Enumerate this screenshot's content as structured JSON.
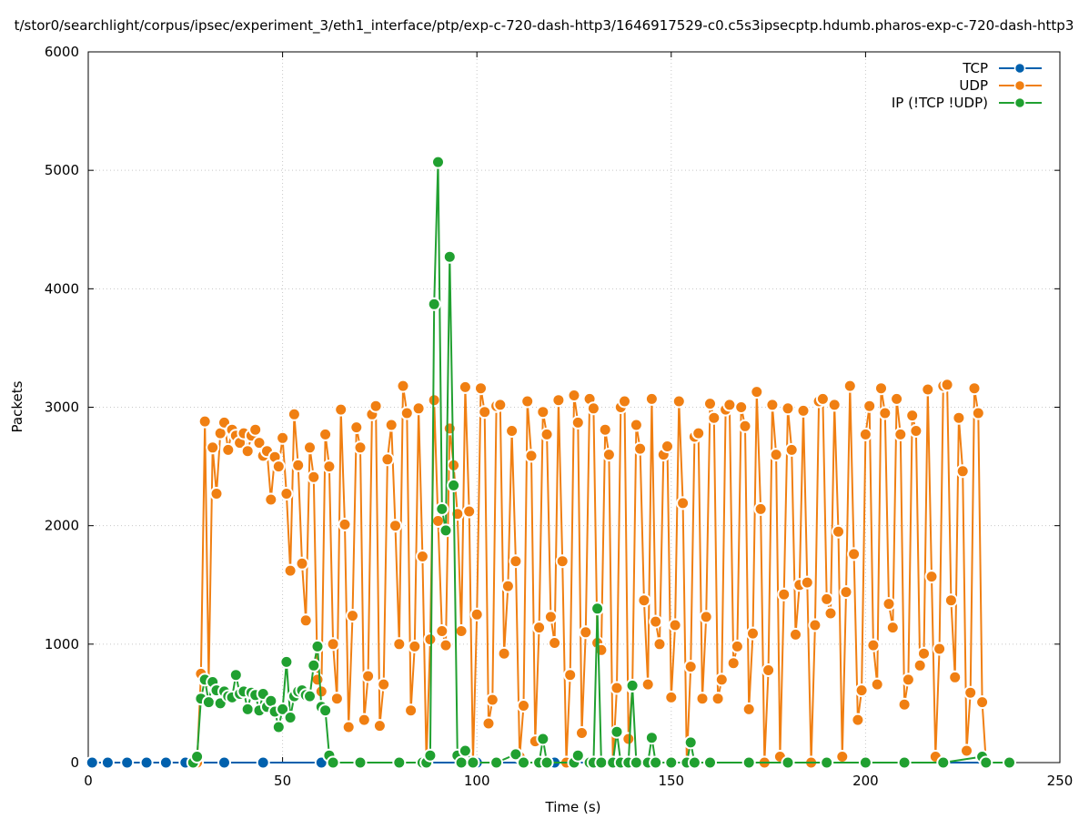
{
  "chart_data": {
    "type": "line",
    "title": "t/stor0/searchlight/corpus/ipsec/experiment_3/eth1_interface/ptp/exp-c-720-dash-http3/1646917529-c0.c5s3ipsecptp.hdumb.pharos-exp-c-720-dash-http3",
    "xlabel": "Time (s)",
    "ylabel": "Packets",
    "xlim": [
      0,
      250
    ],
    "ylim": [
      0,
      6000
    ],
    "x_ticks": [
      "0",
      "50",
      "100",
      "150",
      "200",
      "250"
    ],
    "y_ticks": [
      "0",
      "1000",
      "2000",
      "3000",
      "4000",
      "5000",
      "6000"
    ],
    "grid": true,
    "legend_position": "top-right",
    "legend": [
      "TCP",
      "UDP",
      "IP (!TCP  !UDP)"
    ],
    "series": [
      {
        "name": "TCP",
        "color": "#0060ad",
        "points": [
          [
            1,
            0
          ],
          [
            5,
            0
          ],
          [
            10,
            0
          ],
          [
            15,
            0
          ],
          [
            20,
            0
          ],
          [
            25,
            0
          ],
          [
            28,
            0
          ],
          [
            35,
            0
          ],
          [
            45,
            0
          ],
          [
            60,
            0
          ],
          [
            80,
            0
          ],
          [
            100,
            0
          ],
          [
            120,
            0
          ],
          [
            140,
            0
          ],
          [
            160,
            0
          ],
          [
            180,
            0
          ],
          [
            200,
            0
          ],
          [
            220,
            0
          ],
          [
            237,
            0
          ]
        ]
      },
      {
        "name": "UDP",
        "color": "#f07f12",
        "points": [
          [
            28,
            0
          ],
          [
            29,
            750
          ],
          [
            30,
            2880
          ],
          [
            31,
            680
          ],
          [
            32,
            2660
          ],
          [
            33,
            2270
          ],
          [
            34,
            2780
          ],
          [
            35,
            2870
          ],
          [
            36,
            2640
          ],
          [
            37,
            2810
          ],
          [
            38,
            2760
          ],
          [
            39,
            2700
          ],
          [
            40,
            2780
          ],
          [
            41,
            2630
          ],
          [
            42,
            2760
          ],
          [
            43,
            2810
          ],
          [
            44,
            2700
          ],
          [
            45,
            2590
          ],
          [
            46,
            2630
          ],
          [
            47,
            2220
          ],
          [
            48,
            2580
          ],
          [
            49,
            2500
          ],
          [
            50,
            2740
          ],
          [
            51,
            2270
          ],
          [
            52,
            1620
          ],
          [
            53,
            2940
          ],
          [
            54,
            2510
          ],
          [
            55,
            1680
          ],
          [
            56,
            1200
          ],
          [
            57,
            2660
          ],
          [
            58,
            2410
          ],
          [
            59,
            700
          ],
          [
            60,
            600
          ],
          [
            61,
            2770
          ],
          [
            62,
            2500
          ],
          [
            63,
            1000
          ],
          [
            64,
            540
          ],
          [
            65,
            2980
          ],
          [
            66,
            2010
          ],
          [
            67,
            300
          ],
          [
            68,
            1240
          ],
          [
            69,
            2830
          ],
          [
            70,
            2660
          ],
          [
            71,
            360
          ],
          [
            72,
            730
          ],
          [
            73,
            2940
          ],
          [
            74,
            3010
          ],
          [
            75,
            310
          ],
          [
            76,
            660
          ],
          [
            77,
            2560
          ],
          [
            78,
            2850
          ],
          [
            79,
            2000
          ],
          [
            80,
            1000
          ],
          [
            81,
            3180
          ],
          [
            82,
            2950
          ],
          [
            83,
            440
          ],
          [
            84,
            980
          ],
          [
            85,
            2990
          ],
          [
            86,
            1740
          ],
          [
            87,
            0
          ],
          [
            88,
            1040
          ],
          [
            89,
            3060
          ],
          [
            90,
            2040
          ],
          [
            91,
            1110
          ],
          [
            92,
            990
          ],
          [
            93,
            2820
          ],
          [
            94,
            2510
          ],
          [
            95,
            2100
          ],
          [
            96,
            1110
          ],
          [
            97,
            3170
          ],
          [
            98,
            2120
          ],
          [
            99,
            0
          ],
          [
            100,
            1250
          ],
          [
            101,
            3160
          ],
          [
            102,
            2960
          ],
          [
            103,
            330
          ],
          [
            104,
            530
          ],
          [
            105,
            3010
          ],
          [
            106,
            3020
          ],
          [
            107,
            920
          ],
          [
            108,
            1490
          ],
          [
            109,
            2800
          ],
          [
            110,
            1700
          ],
          [
            111,
            50
          ],
          [
            112,
            480
          ],
          [
            113,
            3050
          ],
          [
            114,
            2590
          ],
          [
            115,
            180
          ],
          [
            116,
            1140
          ],
          [
            117,
            2960
          ],
          [
            118,
            2770
          ],
          [
            119,
            1230
          ],
          [
            120,
            1010
          ],
          [
            121,
            3060
          ],
          [
            122,
            1700
          ],
          [
            123,
            0
          ],
          [
            124,
            740
          ],
          [
            125,
            3100
          ],
          [
            126,
            2870
          ],
          [
            127,
            250
          ],
          [
            128,
            1100
          ],
          [
            129,
            3070
          ],
          [
            130,
            2990
          ],
          [
            131,
            1010
          ],
          [
            132,
            950
          ],
          [
            133,
            2810
          ],
          [
            134,
            2600
          ],
          [
            135,
            0
          ],
          [
            136,
            630
          ],
          [
            137,
            3000
          ],
          [
            138,
            3050
          ],
          [
            139,
            200
          ],
          [
            140,
            640
          ],
          [
            141,
            2850
          ],
          [
            142,
            2650
          ],
          [
            143,
            1370
          ],
          [
            144,
            660
          ],
          [
            145,
            3070
          ],
          [
            146,
            1190
          ],
          [
            147,
            1000
          ],
          [
            148,
            2600
          ],
          [
            149,
            2670
          ],
          [
            150,
            550
          ],
          [
            151,
            1160
          ],
          [
            152,
            3050
          ],
          [
            153,
            2190
          ],
          [
            154,
            0
          ],
          [
            155,
            810
          ],
          [
            156,
            2750
          ],
          [
            157,
            2780
          ],
          [
            158,
            540
          ],
          [
            159,
            1230
          ],
          [
            160,
            3030
          ],
          [
            161,
            2910
          ],
          [
            162,
            540
          ],
          [
            163,
            700
          ],
          [
            164,
            2980
          ],
          [
            165,
            3020
          ],
          [
            166,
            840
          ],
          [
            167,
            980
          ],
          [
            168,
            3000
          ],
          [
            169,
            2840
          ],
          [
            170,
            450
          ],
          [
            171,
            1090
          ],
          [
            172,
            3130
          ],
          [
            173,
            2140
          ],
          [
            174,
            0
          ],
          [
            175,
            780
          ],
          [
            176,
            3020
          ],
          [
            177,
            2600
          ],
          [
            178,
            50
          ],
          [
            179,
            1420
          ],
          [
            180,
            2990
          ],
          [
            181,
            2640
          ],
          [
            182,
            1080
          ],
          [
            183,
            1500
          ],
          [
            184,
            2970
          ],
          [
            185,
            1520
          ],
          [
            186,
            0
          ],
          [
            187,
            1160
          ],
          [
            188,
            3050
          ],
          [
            189,
            3070
          ],
          [
            190,
            1380
          ],
          [
            191,
            1260
          ],
          [
            192,
            3020
          ],
          [
            193,
            1950
          ],
          [
            194,
            50
          ],
          [
            195,
            1440
          ],
          [
            196,
            3180
          ],
          [
            197,
            1760
          ],
          [
            198,
            360
          ],
          [
            199,
            610
          ],
          [
            200,
            2770
          ],
          [
            201,
            3010
          ],
          [
            202,
            990
          ],
          [
            203,
            660
          ],
          [
            204,
            3160
          ],
          [
            205,
            2950
          ],
          [
            206,
            1340
          ],
          [
            207,
            1140
          ],
          [
            208,
            3070
          ],
          [
            209,
            2770
          ],
          [
            210,
            490
          ],
          [
            211,
            700
          ],
          [
            212,
            2930
          ],
          [
            213,
            2800
          ],
          [
            214,
            820
          ],
          [
            215,
            920
          ],
          [
            216,
            3150
          ],
          [
            217,
            1570
          ],
          [
            218,
            50
          ],
          [
            219,
            960
          ],
          [
            220,
            3180
          ],
          [
            221,
            3190
          ],
          [
            222,
            1370
          ],
          [
            223,
            720
          ],
          [
            224,
            2910
          ],
          [
            225,
            2460
          ],
          [
            226,
            100
          ],
          [
            227,
            590
          ],
          [
            228,
            3160
          ],
          [
            229,
            2950
          ],
          [
            230,
            510
          ],
          [
            231,
            0
          ],
          [
            237,
            0
          ]
        ]
      },
      {
        "name": "IP (!TCP  !UDP)",
        "color": "#20a030",
        "points": [
          [
            27,
            0
          ],
          [
            28,
            50
          ],
          [
            29,
            540
          ],
          [
            30,
            700
          ],
          [
            31,
            510
          ],
          [
            32,
            680
          ],
          [
            33,
            610
          ],
          [
            34,
            500
          ],
          [
            35,
            600
          ],
          [
            36,
            560
          ],
          [
            37,
            550
          ],
          [
            38,
            740
          ],
          [
            39,
            580
          ],
          [
            40,
            600
          ],
          [
            41,
            450
          ],
          [
            42,
            590
          ],
          [
            43,
            570
          ],
          [
            44,
            440
          ],
          [
            45,
            580
          ],
          [
            46,
            470
          ],
          [
            47,
            520
          ],
          [
            48,
            430
          ],
          [
            49,
            300
          ],
          [
            50,
            450
          ],
          [
            51,
            850
          ],
          [
            52,
            380
          ],
          [
            53,
            560
          ],
          [
            54,
            600
          ],
          [
            55,
            610
          ],
          [
            56,
            570
          ],
          [
            57,
            560
          ],
          [
            58,
            820
          ],
          [
            59,
            980
          ],
          [
            60,
            470
          ],
          [
            61,
            440
          ],
          [
            62,
            60
          ],
          [
            63,
            0
          ],
          [
            70,
            0
          ],
          [
            80,
            0
          ],
          [
            86,
            0
          ],
          [
            87,
            0
          ],
          [
            88,
            60
          ],
          [
            89,
            3870
          ],
          [
            90,
            5070
          ],
          [
            91,
            2140
          ],
          [
            92,
            1960
          ],
          [
            93,
            4270
          ],
          [
            94,
            2340
          ],
          [
            95,
            60
          ],
          [
            96,
            0
          ],
          [
            97,
            100
          ],
          [
            99,
            0
          ],
          [
            105,
            0
          ],
          [
            110,
            70
          ],
          [
            112,
            0
          ],
          [
            116,
            0
          ],
          [
            117,
            200
          ],
          [
            118,
            0
          ],
          [
            125,
            0
          ],
          [
            126,
            60
          ],
          [
            129,
            0
          ],
          [
            130,
            0
          ],
          [
            131,
            1300
          ],
          [
            132,
            0
          ],
          [
            135,
            0
          ],
          [
            136,
            260
          ],
          [
            137,
            0
          ],
          [
            139,
            0
          ],
          [
            140,
            650
          ],
          [
            141,
            0
          ],
          [
            144,
            0
          ],
          [
            145,
            210
          ],
          [
            146,
            0
          ],
          [
            150,
            0
          ],
          [
            154,
            0
          ],
          [
            155,
            170
          ],
          [
            156,
            0
          ],
          [
            160,
            0
          ],
          [
            170,
            0
          ],
          [
            180,
            0
          ],
          [
            190,
            0
          ],
          [
            200,
            0
          ],
          [
            210,
            0
          ],
          [
            220,
            0
          ],
          [
            230,
            50
          ],
          [
            231,
            0
          ],
          [
            237,
            0
          ]
        ]
      }
    ]
  }
}
